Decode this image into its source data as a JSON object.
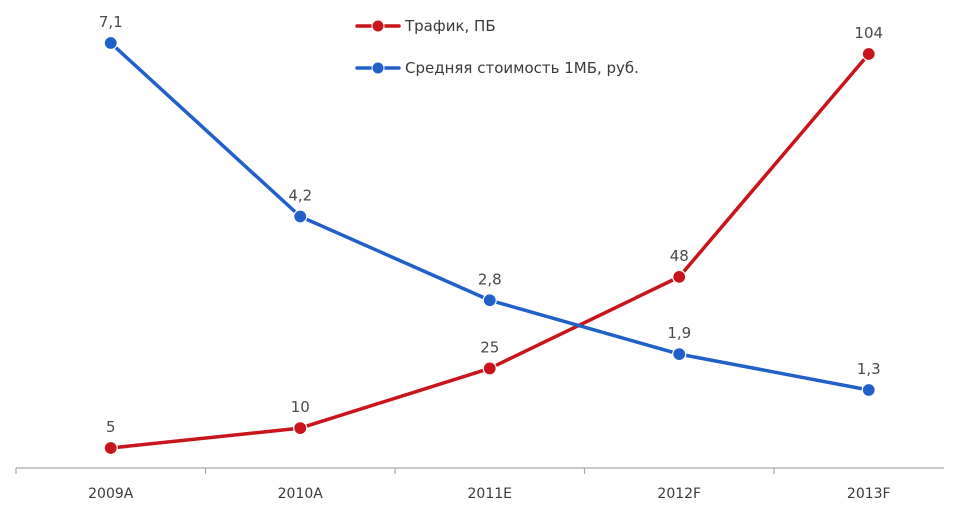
{
  "chart_data": {
    "type": "line",
    "categories": [
      "2009A",
      "2010A",
      "2011E",
      "2012F",
      "2013F"
    ],
    "series": [
      {
        "name": "Трафик, ПБ",
        "color": "#c8141a",
        "values": [
          5,
          10,
          25,
          48,
          104
        ],
        "labels": [
          "5",
          "10",
          "25",
          "48",
          "104"
        ]
      },
      {
        "name": "Средняя стоимость 1МБ, руб.",
        "color": "#2060c8",
        "values": [
          7.1,
          4.2,
          2.8,
          1.9,
          1.3
        ],
        "labels": [
          "7,1",
          "4,2",
          "2,8",
          "1,9",
          "1,3"
        ]
      }
    ],
    "legend_position": "top-center",
    "grid": false,
    "title": "",
    "xlabel": "",
    "ylabel": ""
  }
}
